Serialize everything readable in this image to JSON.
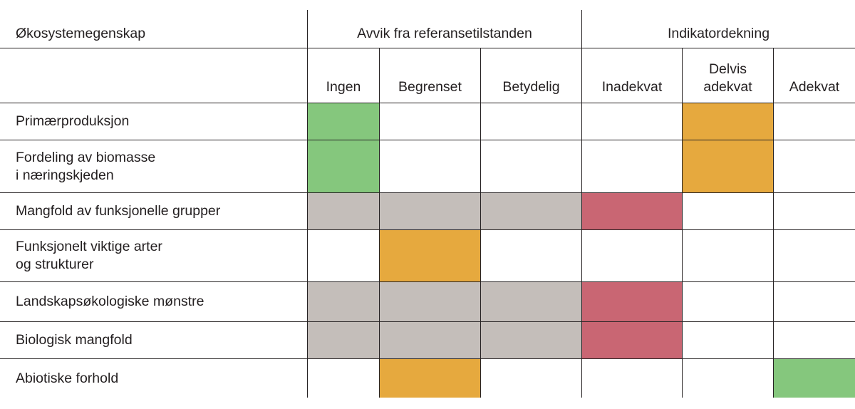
{
  "chart_data": {
    "type": "table",
    "row_header": "Økosystemegenskap",
    "column_groups": [
      {
        "label": "Avvik fra referansetilstanden",
        "columns": [
          "Ingen",
          "Begrenset",
          "Betydelig"
        ]
      },
      {
        "label": "Indikatordekning",
        "columns": [
          "Inadekvat",
          "Delvis\nadekvat",
          "Adekvat"
        ]
      }
    ],
    "column_headers": [
      "Ingen",
      "Begrenset",
      "Betydelig",
      "Inadekvat",
      "Delvis\nadekvat",
      "Adekvat"
    ],
    "rows": [
      {
        "label": "Primærproduksjon",
        "cells": [
          "green",
          "none",
          "none",
          "none",
          "orange",
          "none"
        ]
      },
      {
        "label": "Fordeling av biomasse\ni næringskjeden",
        "cells": [
          "green",
          "none",
          "none",
          "none",
          "orange",
          "none"
        ]
      },
      {
        "label": "Mangfold av funksjonelle grupper",
        "cells": [
          "gray",
          "gray",
          "gray",
          "red",
          "none",
          "none"
        ]
      },
      {
        "label": "Funksjonelt viktige arter\nog strukturer",
        "cells": [
          "none",
          "orange",
          "none",
          "none",
          "none",
          "none"
        ]
      },
      {
        "label": "Landskapsøkologiske mønstre",
        "cells": [
          "gray",
          "gray",
          "gray",
          "red",
          "none",
          "none"
        ]
      },
      {
        "label": "Biologisk mangfold",
        "cells": [
          "gray",
          "gray",
          "gray",
          "red",
          "none",
          "none"
        ]
      },
      {
        "label": "Abiotiske forhold",
        "cells": [
          "none",
          "orange",
          "none",
          "none",
          "none",
          "green"
        ]
      }
    ],
    "color_legend": {
      "green": "#85c77d",
      "orange": "#e6a93e",
      "red": "#c96673",
      "gray": "#c4beba",
      "none": "#ffffff"
    }
  }
}
